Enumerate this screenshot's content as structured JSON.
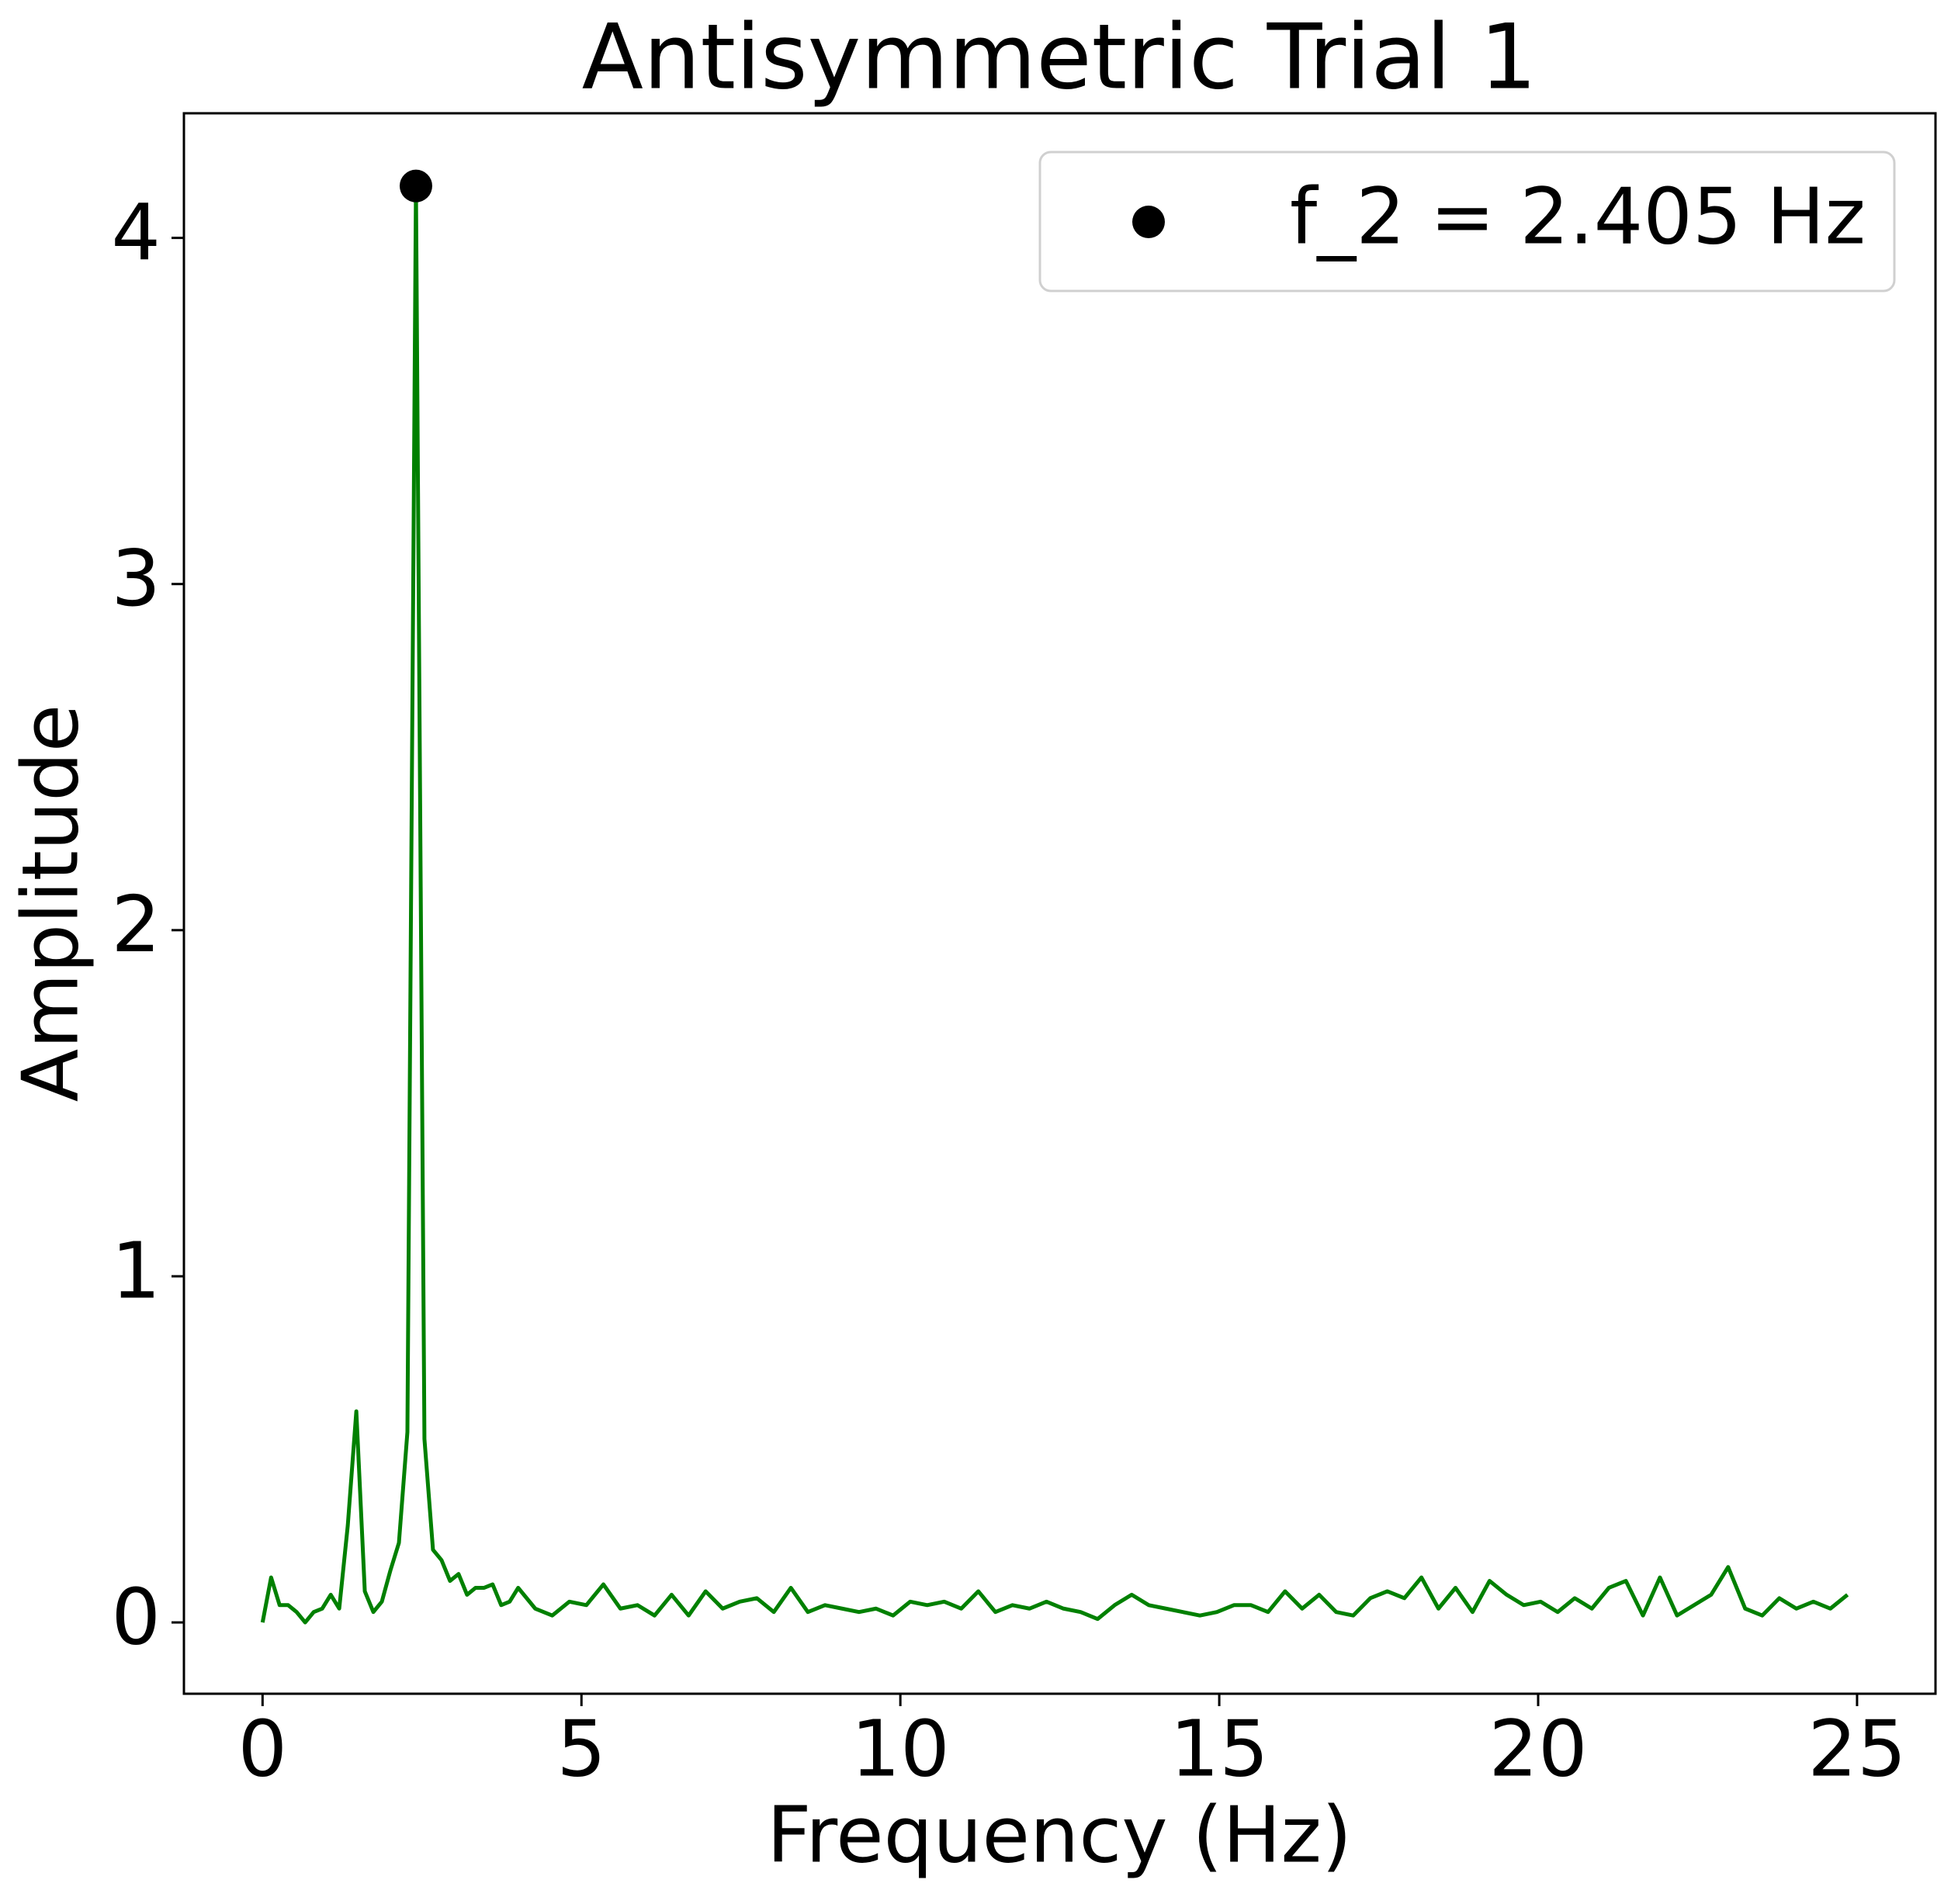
{
  "chart_data": {
    "type": "line",
    "title": "Antisymmetric Trial 1",
    "x_label": "Frequency (Hz)",
    "y_label": "Amplitude",
    "x": [
      0,
      0.134,
      0.267,
      0.401,
      0.534,
      0.668,
      0.802,
      0.935,
      1.069,
      1.202,
      1.336,
      1.47,
      1.603,
      1.737,
      1.87,
      2.004,
      2.138,
      2.271,
      2.405,
      2.538,
      2.672,
      2.806,
      2.939,
      3.073,
      3.206,
      3.34,
      3.474,
      3.607,
      3.741,
      3.874,
      4.008,
      4.275,
      4.542,
      4.81,
      5.077,
      5.344,
      5.611,
      5.878,
      6.146,
      6.413,
      6.68,
      6.947,
      7.214,
      7.482,
      7.749,
      8.016,
      8.283,
      8.55,
      8.818,
      9.085,
      9.352,
      9.619,
      9.886,
      10.154,
      10.421,
      10.688,
      10.955,
      11.222,
      11.49,
      11.757,
      12.024,
      12.291,
      12.558,
      12.826,
      13.093,
      13.36,
      13.627,
      13.894,
      14.162,
      14.429,
      14.696,
      14.963,
      15.23,
      15.498,
      15.765,
      16.032,
      16.299,
      16.566,
      16.834,
      17.101,
      17.368,
      17.635,
      17.902,
      18.17,
      18.437,
      18.704,
      18.971,
      19.238,
      19.506,
      19.773,
      20.04,
      20.307,
      20.574,
      20.842,
      21.109,
      21.376,
      21.643,
      21.91,
      22.178,
      22.445,
      22.712,
      22.979,
      23.246,
      23.514,
      23.781,
      24.048,
      24.315,
      24.582,
      24.85
    ],
    "values": [
      0,
      0.13,
      0.05,
      0.05,
      0.03,
      0.0,
      0.03,
      0.04,
      0.08,
      0.04,
      0.28,
      0.61,
      0.09,
      0.03,
      0.06,
      0.15,
      0.23,
      0.55,
      4.15,
      0.53,
      0.21,
      0.18,
      0.12,
      0.14,
      0.08,
      0.1,
      0.1,
      0.11,
      0.05,
      0.06,
      0.1,
      0.04,
      0.02,
      0.06,
      0.05,
      0.11,
      0.04,
      0.05,
      0.02,
      0.08,
      0.02,
      0.09,
      0.04,
      0.06,
      0.07,
      0.03,
      0.1,
      0.03,
      0.05,
      0.04,
      0.03,
      0.04,
      0.02,
      0.06,
      0.05,
      0.06,
      0.04,
      0.09,
      0.03,
      0.05,
      0.04,
      0.06,
      0.04,
      0.03,
      0.01,
      0.05,
      0.08,
      0.05,
      0.04,
      0.03,
      0.02,
      0.03,
      0.05,
      0.05,
      0.03,
      0.09,
      0.04,
      0.08,
      0.03,
      0.02,
      0.07,
      0.09,
      0.07,
      0.13,
      0.04,
      0.1,
      0.03,
      0.12,
      0.08,
      0.05,
      0.06,
      0.03,
      0.07,
      0.04,
      0.1,
      0.12,
      0.02,
      0.13,
      0.02,
      0.05,
      0.08,
      0.16,
      0.04,
      0.02,
      0.07,
      0.04,
      0.06,
      0.04,
      0.08
    ],
    "color": "#008000",
    "peak": {
      "name": "f_2 = 2.405 Hz",
      "x": 2.405,
      "y": 4.15,
      "color": "#000000"
    },
    "legend": "upper right",
    "xlim": [
      -1.233,
      26.23
    ],
    "xticks": [
      0,
      5,
      10,
      15,
      20,
      25
    ],
    "ylim": [
      -0.206,
      4.36
    ],
    "yticks": [
      0,
      1,
      2,
      3,
      4
    ],
    "grid": false
  }
}
